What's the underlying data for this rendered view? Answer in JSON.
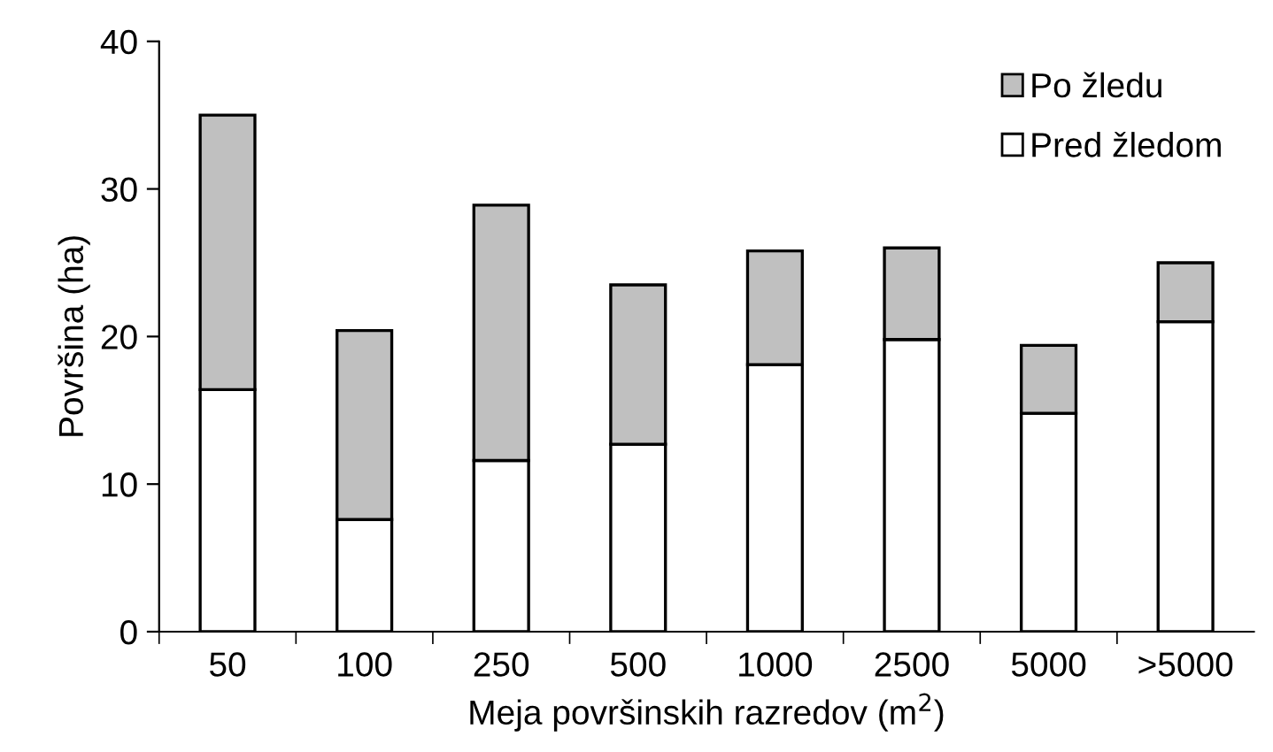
{
  "chart_data": {
    "type": "bar",
    "stacked": true,
    "xlabel": "Meja površinskih razredov (m$^{2}$)",
    "ylabel": "Površina (ha)",
    "categories": [
      "50",
      "100",
      "250",
      "500",
      "1000",
      "2500",
      "5000",
      ">5000"
    ],
    "series": [
      {
        "name": "Pred žledom",
        "color": "#ffffff",
        "values": [
          16.4,
          7.6,
          11.6,
          12.7,
          18.1,
          19.8,
          14.8,
          21.0
        ]
      },
      {
        "name": "Po žledu",
        "color": "#c0c0c0",
        "values": [
          18.6,
          12.8,
          17.3,
          10.8,
          7.7,
          6.2,
          4.6,
          4.0
        ]
      }
    ],
    "ylim": [
      0,
      40
    ],
    "yticks": [
      0,
      10,
      20,
      30,
      40
    ],
    "grid": false,
    "legend": "top right"
  }
}
